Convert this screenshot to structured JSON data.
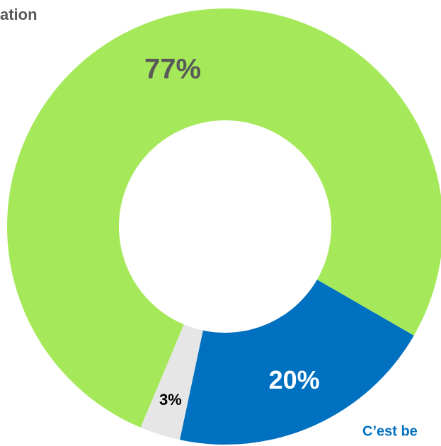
{
  "chart_data": {
    "type": "pie",
    "title": "ation",
    "annotation": "C’est be",
    "values": [
      77,
      20,
      3
    ],
    "value_labels": [
      "77%",
      "20%",
      "3%"
    ],
    "colors": [
      "#a5e95a",
      "#0070c0",
      "#e6e6e6"
    ],
    "donut": true
  }
}
